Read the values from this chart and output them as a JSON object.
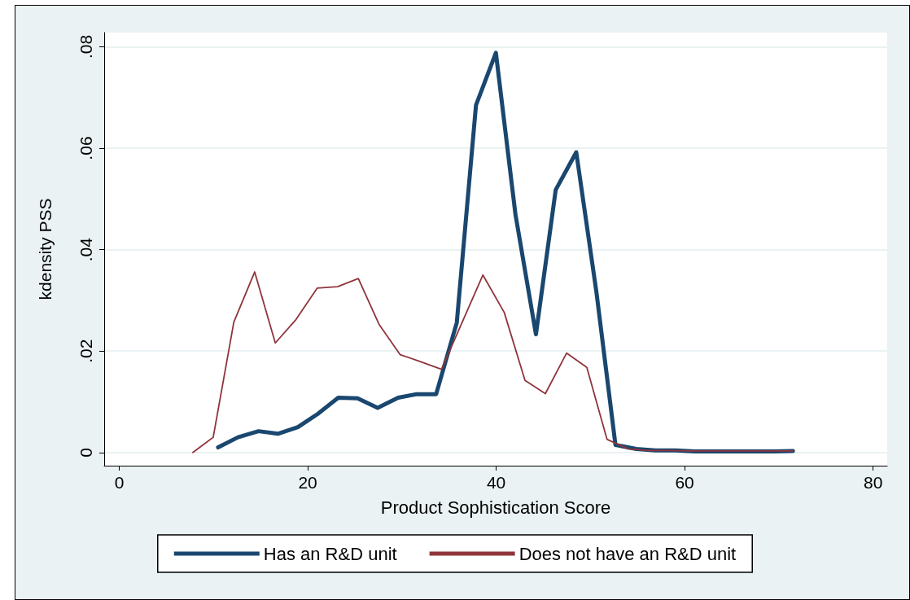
{
  "chart_data": {
    "type": "line",
    "xlabel": "Product Sophistication Score",
    "ylabel": "kdensity PSS",
    "x": [
      10.49,
      12.6,
      14.78,
      16.83,
      18.96,
      21.06,
      23.24,
      25.29,
      27.42,
      29.6,
      31.56,
      33.63,
      35.82,
      37.86,
      39.97,
      42.05,
      44.22,
      46.32,
      48.5,
      50.64,
      52.66,
      54.88,
      56.9,
      59.0,
      61.1,
      63.2,
      65.3,
      67.4,
      69.5,
      71.5
    ],
    "series": [
      {
        "name": "Has an R&D unit",
        "color": "#1a476f",
        "values": [
          0.001,
          0.003,
          0.0042,
          0.0037,
          0.005,
          0.0076,
          0.0108,
          0.0107,
          0.0088,
          0.0108,
          0.0115,
          0.0115,
          0.0256,
          0.0685,
          0.0788,
          0.0469,
          0.0233,
          0.0518,
          0.0592,
          0.0316,
          0.0015,
          0.0007,
          0.0004,
          0.0004,
          0.0002,
          0.0002,
          0.0002,
          0.0002,
          0.0002,
          0.0003
        ]
      },
      {
        "name": "Does not have an R&D unit",
        "color": "#90353b",
        "x": [
          7.81,
          9.97,
          12.16,
          14.37,
          16.56,
          18.75,
          21.0,
          23.18,
          25.37,
          27.56,
          29.8,
          32.0,
          34.2,
          38.59,
          40.86,
          43.06,
          45.22,
          47.48,
          49.62,
          51.76,
          53.99,
          56.1,
          58.3,
          60.5,
          62.7,
          64.9,
          67.1,
          69.3,
          71.5
        ],
        "values": [
          0,
          0.003,
          0.0257,
          0.0356,
          0.0216,
          0.0262,
          0.0324,
          0.0327,
          0.0343,
          0.0253,
          0.0193,
          0.0179,
          0.0164,
          0.035,
          0.0276,
          0.0142,
          0.0116,
          0.0196,
          0.0168,
          0.0026,
          0.0007,
          0.0004,
          0.0004,
          0.0003,
          0.0003,
          0.0003,
          0.0003,
          0.0003,
          0.0003
        ]
      }
    ],
    "xlim": [
      -1.6,
      81.5
    ],
    "xticks": [
      0,
      20,
      40,
      60,
      80
    ],
    "ylim": [
      -0.0026,
      0.0828
    ],
    "yticks": [
      0,
      {
        "value": 0.02,
        "label": ".02"
      },
      {
        "value": 0.04,
        "label": ".04"
      },
      {
        "value": 0.06,
        "label": ".06"
      },
      {
        "value": 0.08,
        "label": ".08"
      }
    ],
    "grid": "y",
    "legend": "bottom",
    "marker": "none",
    "line_style": "solid"
  }
}
